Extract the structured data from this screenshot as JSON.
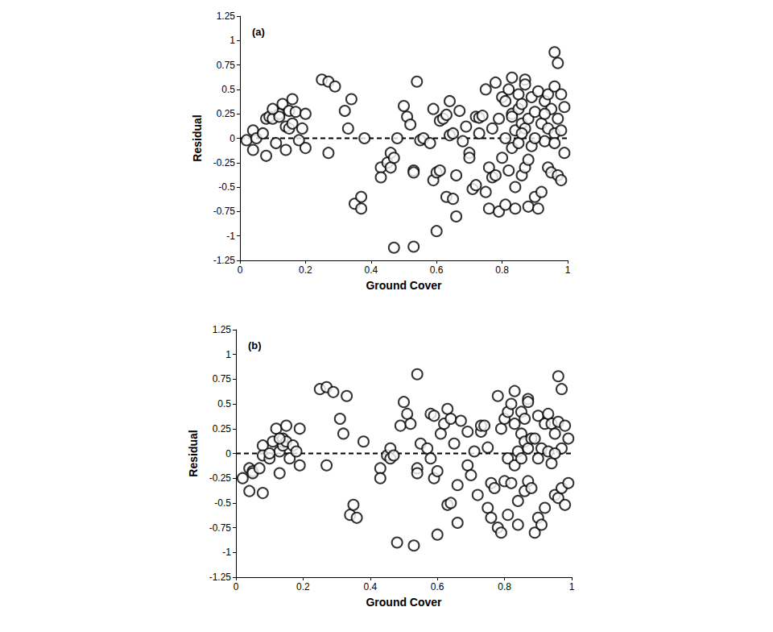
{
  "chart_data": [
    {
      "type": "scatter",
      "title": "(a)",
      "x_label": "Ground Cover",
      "y_label": "Residual",
      "xlim": [
        0,
        1
      ],
      "xticks": [
        0,
        0.2,
        0.4,
        0.6,
        0.8,
        1
      ],
      "ylim": [
        -1.25,
        1.25
      ],
      "yticks": [
        -1.25,
        -1,
        -0.75,
        -0.5,
        -0.25,
        0,
        0.25,
        0.5,
        0.75,
        1,
        1.25
      ],
      "grid": false,
      "series": [
        {
          "type": "scatter",
          "marker": "circle",
          "color": "#000000",
          "x": [
            0.02,
            0.04,
            0.04,
            0.05,
            0.07,
            0.08,
            0.08,
            0.09,
            0.1,
            0.11,
            0.12,
            0.13,
            0.14,
            0.14,
            0.15,
            0.15,
            0.16,
            0.16,
            0.17,
            0.18,
            0.19,
            0.2,
            0.2,
            0.12,
            0.1,
            0.25,
            0.27,
            0.29,
            0.27,
            0.32,
            0.33,
            0.34,
            0.35,
            0.37,
            0.37,
            0.38,
            0.43,
            0.43,
            0.45,
            0.46,
            0.46,
            0.47,
            0.47,
            0.48,
            0.5,
            0.51,
            0.52,
            0.53,
            0.53,
            0.53,
            0.54,
            0.55,
            0.56,
            0.58,
            0.59,
            0.59,
            0.6,
            0.6,
            0.61,
            0.61,
            0.62,
            0.63,
            0.63,
            0.64,
            0.64,
            0.65,
            0.65,
            0.66,
            0.66,
            0.67,
            0.68,
            0.69,
            0.7,
            0.7,
            0.71,
            0.72,
            0.72,
            0.73,
            0.73,
            0.74,
            0.75,
            0.75,
            0.76,
            0.76,
            0.77,
            0.77,
            0.78,
            0.78,
            0.79,
            0.79,
            0.8,
            0.8,
            0.81,
            0.81,
            0.81,
            0.82,
            0.82,
            0.83,
            0.83,
            0.83,
            0.84,
            0.84,
            0.84,
            0.85,
            0.85,
            0.85,
            0.86,
            0.86,
            0.86,
            0.87,
            0.87,
            0.87,
            0.87,
            0.88,
            0.88,
            0.88,
            0.89,
            0.89,
            0.9,
            0.9,
            0.91,
            0.91,
            0.92,
            0.92,
            0.93,
            0.93,
            0.94,
            0.94,
            0.94,
            0.95,
            0.95,
            0.96,
            0.96,
            0.96,
            0.97,
            0.97,
            0.97,
            0.98,
            0.98,
            0.98,
            0.99,
            0.99,
            0.96,
            0.93,
            0.9,
            0.83,
            0.86
          ],
          "values": [
            -0.02,
            0.08,
            -0.12,
            0.0,
            0.05,
            -0.18,
            0.2,
            0.22,
            0.2,
            -0.05,
            0.25,
            0.35,
            0.12,
            -0.12,
            0.28,
            0.1,
            0.4,
            0.15,
            0.27,
            -0.02,
            0.1,
            0.25,
            -0.1,
            0.22,
            0.3,
            0.6,
            0.58,
            0.53,
            -0.15,
            0.28,
            0.1,
            0.4,
            -0.67,
            -0.6,
            -0.72,
            0.0,
            -0.3,
            -0.4,
            -0.25,
            -0.15,
            -0.3,
            -0.2,
            -1.12,
            0.0,
            0.33,
            0.22,
            0.14,
            -0.33,
            -0.35,
            -1.11,
            0.58,
            -0.02,
            0.0,
            -0.05,
            0.3,
            -0.43,
            -0.35,
            -0.95,
            0.18,
            -0.33,
            0.2,
            0.24,
            -0.6,
            0.38,
            0.03,
            -0.62,
            0.05,
            -0.8,
            -0.38,
            0.28,
            -0.03,
            0.12,
            -0.15,
            -0.2,
            -0.52,
            0.22,
            -0.48,
            0.21,
            0.05,
            0.23,
            0.5,
            -0.55,
            -0.3,
            -0.72,
            -0.4,
            0.1,
            0.57,
            -0.38,
            0.2,
            -0.75,
            0.42,
            -0.2,
            0.38,
            -0.68,
            0.0,
            0.5,
            -0.33,
            0.62,
            0.25,
            -0.1,
            0.08,
            -0.5,
            -0.72,
            0.45,
            0.3,
            -0.05,
            0.15,
            0.35,
            -0.38,
            0.6,
            0.55,
            0.1,
            -0.3,
            0.2,
            -0.22,
            -0.7,
            0.42,
            -0.08,
            0.27,
            -0.6,
            0.48,
            -0.72,
            0.15,
            -0.55,
            0.38,
            -0.03,
            0.45,
            0.1,
            -0.3,
            0.3,
            -0.35,
            0.88,
            0.53,
            0.05,
            0.77,
            0.2,
            -0.38,
            0.45,
            0.08,
            -0.43,
            0.32,
            -0.15,
            -0.05,
            0.25,
            0.0,
            0.22,
            0.05
          ]
        },
        {
          "type": "line",
          "line_style": "dashed",
          "color": "#000000",
          "x": [
            0,
            1
          ],
          "values": [
            0,
            0
          ]
        }
      ]
    },
    {
      "type": "scatter",
      "title": "(b)",
      "x_label": "Ground Cover",
      "y_label": "Residual",
      "xlim": [
        0,
        1
      ],
      "xticks": [
        0,
        0.2,
        0.4,
        0.6,
        0.8,
        1
      ],
      "ylim": [
        -1.25,
        1.25
      ],
      "yticks": [
        -1.25,
        -1,
        -0.75,
        -0.5,
        -0.25,
        0,
        0.25,
        0.5,
        0.75,
        1,
        1.25
      ],
      "grid": false,
      "series": [
        {
          "type": "scatter",
          "marker": "circle",
          "color": "#000000",
          "x": [
            0.02,
            0.04,
            0.04,
            0.05,
            0.05,
            0.07,
            0.08,
            0.08,
            0.08,
            0.1,
            0.11,
            0.12,
            0.13,
            0.13,
            0.14,
            0.14,
            0.15,
            0.15,
            0.16,
            0.17,
            0.18,
            0.19,
            0.19,
            0.13,
            0.1,
            0.25,
            0.27,
            0.29,
            0.27,
            0.31,
            0.32,
            0.33,
            0.34,
            0.35,
            0.36,
            0.38,
            0.43,
            0.43,
            0.45,
            0.46,
            0.46,
            0.47,
            0.48,
            0.49,
            0.5,
            0.51,
            0.52,
            0.53,
            0.54,
            0.54,
            0.54,
            0.55,
            0.57,
            0.58,
            0.58,
            0.59,
            0.59,
            0.6,
            0.6,
            0.61,
            0.62,
            0.63,
            0.63,
            0.64,
            0.64,
            0.65,
            0.66,
            0.66,
            0.67,
            0.69,
            0.69,
            0.7,
            0.71,
            0.72,
            0.73,
            0.73,
            0.74,
            0.75,
            0.75,
            0.76,
            0.76,
            0.77,
            0.78,
            0.78,
            0.79,
            0.79,
            0.8,
            0.8,
            0.81,
            0.81,
            0.81,
            0.82,
            0.82,
            0.83,
            0.83,
            0.83,
            0.84,
            0.84,
            0.84,
            0.85,
            0.85,
            0.85,
            0.86,
            0.86,
            0.86,
            0.87,
            0.87,
            0.87,
            0.87,
            0.88,
            0.88,
            0.89,
            0.89,
            0.9,
            0.9,
            0.91,
            0.91,
            0.92,
            0.92,
            0.93,
            0.93,
            0.94,
            0.94,
            0.95,
            0.95,
            0.96,
            0.96,
            0.96,
            0.97,
            0.97,
            0.97,
            0.98,
            0.98,
            0.99,
            0.99,
            0.95,
            0.9
          ],
          "values": [
            -0.25,
            -0.15,
            -0.38,
            -0.18,
            -0.2,
            -0.15,
            -0.4,
            0.08,
            -0.02,
            -0.05,
            0.12,
            0.25,
            -0.2,
            0.02,
            0.15,
            0.08,
            0.28,
            0.12,
            -0.05,
            0.08,
            0.02,
            0.25,
            -0.12,
            0.15,
            0.0,
            0.65,
            0.67,
            0.62,
            -0.12,
            0.35,
            0.2,
            0.58,
            -0.62,
            -0.52,
            -0.65,
            0.12,
            -0.15,
            -0.25,
            -0.02,
            0.05,
            -0.05,
            -0.02,
            -0.9,
            0.28,
            0.52,
            0.4,
            0.3,
            -0.93,
            0.8,
            -0.15,
            -0.2,
            0.1,
            0.05,
            -0.05,
            0.4,
            0.38,
            -0.25,
            -0.82,
            -0.18,
            0.2,
            0.3,
            0.45,
            -0.52,
            0.35,
            -0.5,
            0.1,
            -0.7,
            -0.32,
            0.33,
            -0.12,
            0.22,
            -0.22,
            0.02,
            -0.42,
            0.22,
            0.28,
            0.28,
            -0.55,
            0.06,
            -0.3,
            -0.65,
            -0.35,
            0.58,
            -0.75,
            0.25,
            -0.8,
            0.35,
            -0.28,
            0.42,
            -0.62,
            -0.05,
            0.5,
            -0.3,
            0.63,
            0.3,
            -0.12,
            0.02,
            -0.48,
            -0.72,
            0.42,
            0.2,
            -0.05,
            0.12,
            0.35,
            -0.38,
            0.55,
            0.52,
            0.05,
            -0.28,
            0.15,
            -0.35,
            -0.8,
            0.15,
            -0.65,
            0.38,
            0.05,
            -0.72,
            0.3,
            -0.55,
            0.4,
            0.02,
            0.3,
            -0.1,
            0.2,
            -0.42,
            0.78,
            0.32,
            -0.45,
            0.65,
            0.05,
            -0.35,
            0.28,
            -0.52,
            0.15,
            -0.3,
            0.0,
            -0.05
          ]
        },
        {
          "type": "line",
          "line_style": "dashed",
          "color": "#000000",
          "x": [
            0,
            1
          ],
          "values": [
            0,
            0
          ]
        }
      ]
    }
  ]
}
